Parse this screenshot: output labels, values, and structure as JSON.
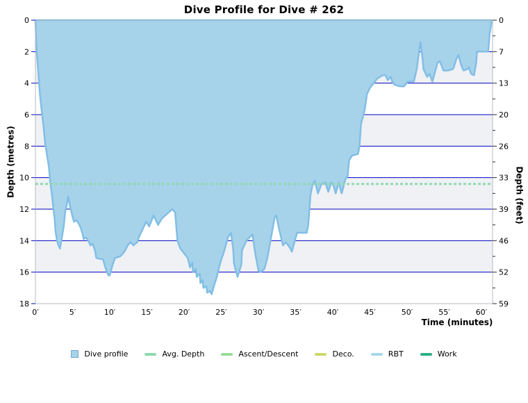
{
  "title": "Dive Profile for Dive # 262",
  "axes": {
    "x": {
      "label": "Time (minutes)",
      "ticks": [
        {
          "v": 0,
          "label": "0′"
        },
        {
          "v": 5,
          "label": "5′"
        },
        {
          "v": 10,
          "label": "10′"
        },
        {
          "v": 15,
          "label": "15′"
        },
        {
          "v": 20,
          "label": "20′"
        },
        {
          "v": 25,
          "label": "25′"
        },
        {
          "v": 30,
          "label": "30′"
        },
        {
          "v": 35,
          "label": "35′"
        },
        {
          "v": 40,
          "label": "40′"
        },
        {
          "v": 45,
          "label": "45′"
        },
        {
          "v": 50,
          "label": "50′"
        },
        {
          "v": 55,
          "label": "55′"
        },
        {
          "v": 60,
          "label": "60′"
        }
      ]
    },
    "y_left": {
      "label": "Depth (metres)",
      "ticks": [
        {
          "v": 0,
          "label": "0"
        },
        {
          "v": 2,
          "label": "2"
        },
        {
          "v": 4,
          "label": "4"
        },
        {
          "v": 6,
          "label": "6"
        },
        {
          "v": 8,
          "label": "8"
        },
        {
          "v": 10,
          "label": "10"
        },
        {
          "v": 12,
          "label": "12"
        },
        {
          "v": 14,
          "label": "14"
        },
        {
          "v": 16,
          "label": "16"
        },
        {
          "v": 18,
          "label": "18"
        }
      ]
    },
    "y_right": {
      "label": "Depth (feet)",
      "ticks": [
        {
          "v": 0,
          "label": "0"
        },
        {
          "v": 2,
          "label": "7"
        },
        {
          "v": 4,
          "label": "13"
        },
        {
          "v": 6,
          "label": "20"
        },
        {
          "v": 8,
          "label": "26"
        },
        {
          "v": 10,
          "label": "33"
        },
        {
          "v": 12,
          "label": "39"
        },
        {
          "v": 14,
          "label": "46"
        },
        {
          "v": 16,
          "label": "52"
        },
        {
          "v": 18,
          "label": "59"
        }
      ],
      "minor_ticks": [
        1,
        3,
        5,
        7,
        9,
        11,
        13,
        15,
        17
      ]
    }
  },
  "legend": [
    {
      "label": "Dive profile",
      "swatch": "square",
      "color": "#a6d3ea",
      "border": "#73a9cd"
    },
    {
      "label": "Avg. Depth",
      "swatch": "line",
      "color": "#8fd9b2"
    },
    {
      "label": "Ascent/Descent",
      "swatch": "line",
      "color": "#97dc99"
    },
    {
      "label": "Deco.",
      "swatch": "line",
      "color": "#cbd96a"
    },
    {
      "label": "RBT",
      "swatch": "line",
      "color": "#a6d7ec"
    },
    {
      "label": "Work",
      "swatch": "line",
      "color": "#2fae89"
    }
  ],
  "colors": {
    "profile_fill": "#a6d3ea",
    "profile_stroke": "#82bee6",
    "gridline": "#0000c0",
    "band_gray": "#eff1f4",
    "band_white": "#ffffff",
    "plot_border": "#b4b9c0",
    "avg_depth_line": "#92d9b0",
    "tick_mark_right": "#2a2a2a",
    "text": "#000000"
  },
  "chart_data": {
    "type": "area",
    "title": "Dive Profile for Dive # 262",
    "xlabel": "Time (minutes)",
    "ylabel_left": "Depth (metres)",
    "ylabel_right": "Depth (feet)",
    "xlim": [
      0,
      61.5
    ],
    "ylim": [
      0,
      18
    ],
    "y_inverted_depth_axis": true,
    "grid_every_m": 2,
    "band_every_m": 2,
    "avg_depth_m": 10.4,
    "legend_position": "bottom",
    "series": [
      {
        "name": "Dive profile",
        "units": {
          "x": "minutes",
          "y": "metres"
        },
        "points": [
          [
            0,
            0
          ],
          [
            0.1,
            1.5
          ],
          [
            0.4,
            3.4
          ],
          [
            0.6,
            4.7
          ],
          [
            0.8,
            5.6
          ],
          [
            1.1,
            6.8
          ],
          [
            1.3,
            7.8
          ],
          [
            1.6,
            8.7
          ],
          [
            1.8,
            9.3
          ],
          [
            2,
            10.3
          ],
          [
            2.2,
            11
          ],
          [
            2.4,
            11.9
          ],
          [
            2.6,
            12.7
          ],
          [
            2.7,
            13.4
          ],
          [
            2.9,
            14
          ],
          [
            3.1,
            14.3
          ],
          [
            3.3,
            14.5
          ],
          [
            3.6,
            13.7
          ],
          [
            3.8,
            13.1
          ],
          [
            4,
            12.2
          ],
          [
            4.3,
            11.5
          ],
          [
            4.4,
            11.2
          ],
          [
            4.7,
            11.9
          ],
          [
            5,
            12.5
          ],
          [
            5.2,
            12.8
          ],
          [
            5.5,
            12.7
          ],
          [
            5.8,
            12.9
          ],
          [
            6.1,
            13.2
          ],
          [
            6.3,
            13.5
          ],
          [
            6.5,
            13.9
          ],
          [
            6.8,
            13.8
          ],
          [
            7.1,
            14
          ],
          [
            7.4,
            14.3
          ],
          [
            7.7,
            14.2
          ],
          [
            8,
            14.6
          ],
          [
            8.2,
            15.1
          ],
          [
            9.1,
            15.2
          ],
          [
            9.4,
            15.7
          ],
          [
            9.8,
            16.2
          ],
          [
            10,
            16.2
          ],
          [
            10.4,
            15.5
          ],
          [
            10.7,
            15.1
          ],
          [
            11.4,
            15
          ],
          [
            11.8,
            14.8
          ],
          [
            12.1,
            14.6
          ],
          [
            12.4,
            14.3
          ],
          [
            12.8,
            14.1
          ],
          [
            13.2,
            14.3
          ],
          [
            13.7,
            14.1
          ],
          [
            13.9,
            13.8
          ],
          [
            14.3,
            13.4
          ],
          [
            14.9,
            12.8
          ],
          [
            15.3,
            13.1
          ],
          [
            15.9,
            12.4
          ],
          [
            16.5,
            13
          ],
          [
            17,
            12.6
          ],
          [
            17.7,
            12.3
          ],
          [
            18.4,
            12
          ],
          [
            18.8,
            12.2
          ],
          [
            19.1,
            14
          ],
          [
            19.5,
            14.5
          ],
          [
            20,
            14.8
          ],
          [
            20.5,
            15.1
          ],
          [
            20.8,
            15.7
          ],
          [
            21.1,
            15.4
          ],
          [
            21.2,
            16
          ],
          [
            21.6,
            15.8
          ],
          [
            21.7,
            16.3
          ],
          [
            22.1,
            16.1
          ],
          [
            22.2,
            16.7
          ],
          [
            22.5,
            16.5
          ],
          [
            22.6,
            17
          ],
          [
            23,
            16.9
          ],
          [
            23.1,
            17.3
          ],
          [
            23.5,
            17.2
          ],
          [
            23.7,
            17.4
          ],
          [
            24,
            16.9
          ],
          [
            24.4,
            16.3
          ],
          [
            24.7,
            15.7
          ],
          [
            25,
            15.2
          ],
          [
            25.3,
            14.8
          ],
          [
            25.6,
            14.3
          ],
          [
            25.9,
            13.8
          ],
          [
            26.3,
            13.5
          ],
          [
            26.6,
            14.5
          ],
          [
            26.7,
            15.4
          ],
          [
            27,
            16
          ],
          [
            27.2,
            16.3
          ],
          [
            27.7,
            15.5
          ],
          [
            27.8,
            14.6
          ],
          [
            28.4,
            14
          ],
          [
            29.2,
            13.6
          ],
          [
            29.6,
            14.9
          ],
          [
            30,
            15.9
          ],
          [
            30.3,
            16
          ],
          [
            30.8,
            15.8
          ],
          [
            31.2,
            15.1
          ],
          [
            31.7,
            13.8
          ],
          [
            32.2,
            12.5
          ],
          [
            32.4,
            12.4
          ],
          [
            32.8,
            13.3
          ],
          [
            33.3,
            14.3
          ],
          [
            33.7,
            14.1
          ],
          [
            34.3,
            14.5
          ],
          [
            34.5,
            14.7
          ],
          [
            34.9,
            14
          ],
          [
            35.2,
            13.5
          ],
          [
            36.5,
            13.5
          ],
          [
            36.7,
            13
          ],
          [
            37,
            11.1
          ],
          [
            37.3,
            10.4
          ],
          [
            37.6,
            10.2
          ],
          [
            38,
            11
          ],
          [
            38.5,
            10.4
          ],
          [
            39,
            10.3
          ],
          [
            39.4,
            10.9
          ],
          [
            39.8,
            10.3
          ],
          [
            40.1,
            10.5
          ],
          [
            40.4,
            11
          ],
          [
            40.8,
            10.3
          ],
          [
            41.2,
            11
          ],
          [
            41.7,
            10.1
          ],
          [
            42,
            9.9
          ],
          [
            42.2,
            8.9
          ],
          [
            42.6,
            8.6
          ],
          [
            43.4,
            8.5
          ],
          [
            43.6,
            8
          ],
          [
            43.8,
            6.6
          ],
          [
            44.3,
            5.7
          ],
          [
            44.6,
            4.7
          ],
          [
            45,
            4.3
          ],
          [
            45.5,
            4
          ],
          [
            46,
            3.7
          ],
          [
            46.7,
            3.5
          ],
          [
            47.1,
            3.5
          ],
          [
            47.4,
            3.8
          ],
          [
            47.8,
            3.6
          ],
          [
            48,
            3.9
          ],
          [
            48.3,
            4.1
          ],
          [
            49,
            4.2
          ],
          [
            49.6,
            4.2
          ],
          [
            50.1,
            3.9
          ],
          [
            50.9,
            3.9
          ],
          [
            51.3,
            3.1
          ],
          [
            51.6,
            2
          ],
          [
            51.8,
            1.4
          ],
          [
            52.1,
            2.5
          ],
          [
            52.2,
            3.1
          ],
          [
            52.7,
            3.6
          ],
          [
            53,
            3.4
          ],
          [
            53.4,
            3.9
          ],
          [
            53.7,
            3.4
          ],
          [
            54.1,
            2.7
          ],
          [
            54.4,
            2.6
          ],
          [
            54.9,
            3.2
          ],
          [
            55.5,
            3.2
          ],
          [
            56.2,
            3.1
          ],
          [
            56.6,
            2.5
          ],
          [
            56.9,
            2.2
          ],
          [
            57.3,
            2.9
          ],
          [
            57.6,
            3.2
          ],
          [
            58.1,
            3.1
          ],
          [
            58.3,
            3
          ],
          [
            58.6,
            3.4
          ],
          [
            59,
            3.5
          ],
          [
            59.3,
            2.7
          ],
          [
            59.4,
            2
          ],
          [
            60.2,
            2
          ],
          [
            60.9,
            2
          ],
          [
            61,
            1.5
          ],
          [
            61.1,
            0.9
          ],
          [
            61.3,
            0.3
          ],
          [
            61.4,
            0
          ]
        ]
      }
    ]
  }
}
